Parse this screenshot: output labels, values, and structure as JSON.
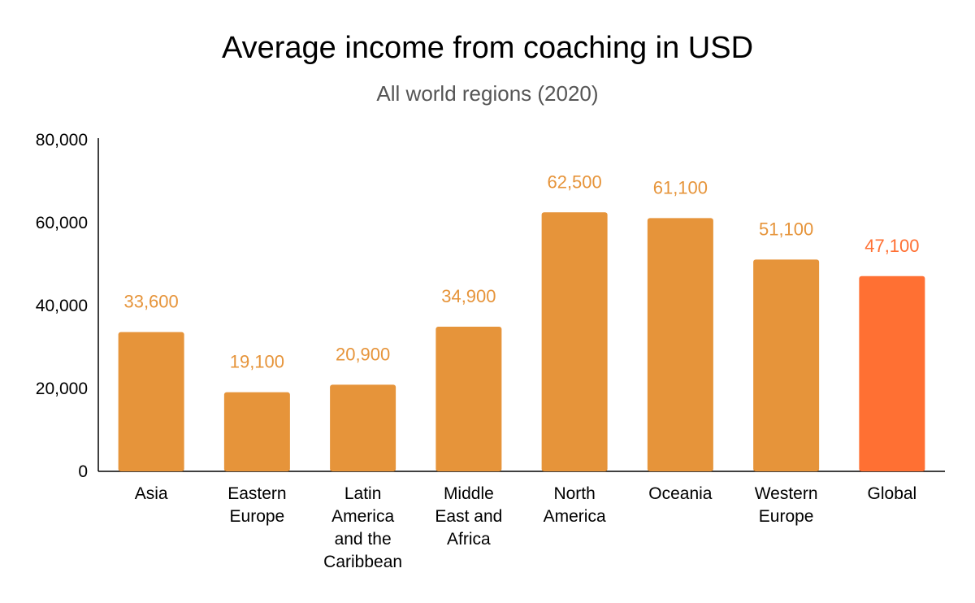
{
  "chart_data": {
    "type": "bar",
    "title": "Average income from coaching in USD",
    "subtitle": "All world regions (2020)",
    "xlabel": "",
    "ylabel": "",
    "ylim": [
      0,
      80000
    ],
    "yticks": [
      0,
      20000,
      40000,
      60000,
      80000
    ],
    "ytick_labels": [
      "0",
      "20,000",
      "40,000",
      "60,000",
      "80,000"
    ],
    "grid": false,
    "legend": "none",
    "categories": [
      "Asia",
      "Eastern Europe",
      "Latin America and the Caribbean",
      "Middle East and Africa",
      "North America",
      "Oceania",
      "Western Europe",
      "Global"
    ],
    "category_label_lines": [
      [
        "Asia"
      ],
      [
        "Eastern",
        "Europe"
      ],
      [
        "Latin",
        "America",
        "and the",
        "Caribbean"
      ],
      [
        "Middle",
        "East and",
        "Africa"
      ],
      [
        "North",
        "America"
      ],
      [
        "Oceania"
      ],
      [
        "Western",
        "Europe"
      ],
      [
        "Global"
      ]
    ],
    "values": [
      33600,
      19100,
      20900,
      34900,
      62500,
      61100,
      51100,
      47100
    ],
    "data_labels": [
      "33,600",
      "19,100",
      "20,900",
      "34,900",
      "62,500",
      "61,100",
      "51,100",
      "47,100"
    ],
    "colors": {
      "bar": "#E6943A",
      "highlight_bar": "#FF7033",
      "data_label": "#E6943A",
      "highlight_data_label": "#FF7033",
      "axis": "#000000"
    },
    "highlight_category": "Global"
  }
}
